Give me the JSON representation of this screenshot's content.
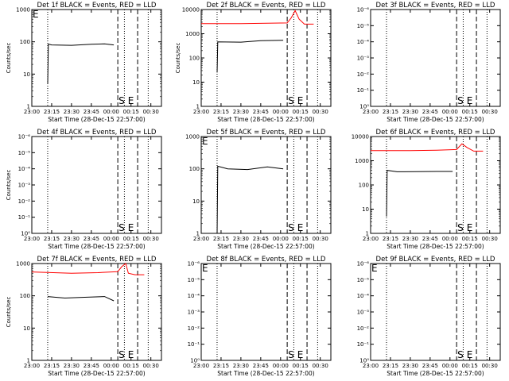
{
  "chart_data": [
    {
      "type": "line",
      "title": "Det 1f BLACK = Events, RED = LLD",
      "xlabel": "Start Time (28-Dec-15 22:57:00)",
      "ylabel": "Counts/sec",
      "yscale": "log",
      "ylim": [
        1,
        1000
      ],
      "yticks": [
        "1",
        "10",
        "100",
        "1000"
      ],
      "xlim": [
        "23:00",
        "00:38"
      ],
      "xticks": [
        "23:00",
        "23:15",
        "23:30",
        "23:45",
        "00:00",
        "00:15",
        "00:30"
      ],
      "markers": [
        {
          "label": "E",
          "x": "23:00"
        },
        {
          "label": "S",
          "x": "00:05"
        },
        {
          "label": "E",
          "x": "00:12"
        }
      ],
      "dotted_lines": [
        "23:12",
        "00:10",
        "00:28"
      ],
      "dashed_lines": [
        "00:05",
        "00:20"
      ],
      "series": [
        {
          "color": "#000000",
          "points": [
            [
              "23:12",
              5
            ],
            [
              "23:12.5",
              85
            ],
            [
              "23:15",
              80
            ],
            [
              "23:30",
              78
            ],
            [
              "23:45",
              84
            ],
            [
              "23:55",
              86
            ],
            [
              "00:02",
              80
            ]
          ]
        }
      ]
    },
    {
      "type": "line",
      "title": "Det 2f BLACK = Events, RED = LLD",
      "xlabel": "Start Time (28-Dec-15 22:57:00)",
      "ylabel": "Counts/sec",
      "yscale": "log",
      "ylim": [
        1,
        10000
      ],
      "yticks": [
        "1",
        "10",
        "100",
        "1000",
        "10000"
      ],
      "xlim": [
        "23:00",
        "00:38"
      ],
      "xticks": [
        "23:00",
        "23:15",
        "23:30",
        "23:45",
        "00:00",
        "00:15",
        "00:30"
      ],
      "markers": [
        {
          "label": "S",
          "x": "00:05"
        },
        {
          "label": "E",
          "x": "00:12"
        }
      ],
      "dotted_lines": [
        "23:12",
        "00:10",
        "00:28"
      ],
      "dashed_lines": [
        "00:05",
        "00:20"
      ],
      "series": [
        {
          "color": "#000000",
          "points": [
            [
              "23:12",
              25
            ],
            [
              "23:12.5",
              460
            ],
            [
              "23:30",
              450
            ],
            [
              "23:45",
              520
            ],
            [
              "00:02",
              540
            ]
          ]
        },
        {
          "color": "#ff0000",
          "points": [
            [
              "23:00",
              2600
            ],
            [
              "23:30",
              2600
            ],
            [
              "23:50",
              2700
            ],
            [
              "00:05",
              2800
            ],
            [
              "00:08",
              4500
            ],
            [
              "00:11",
              9000
            ],
            [
              "00:14",
              4000
            ],
            [
              "00:18",
              2500
            ],
            [
              "00:25",
              2500
            ]
          ]
        }
      ]
    },
    {
      "type": "line",
      "title": "Det 3f BLACK = Events, RED = LLD",
      "xlabel": "Start Time (28-Dec-15 22:57:00)",
      "ylabel": "",
      "yscale": "log",
      "yticks": [
        "10⁰",
        "10⁻¹",
        "10⁻²",
        "10⁻³",
        "10⁻⁴",
        "10⁻⁵",
        "10⁻⁶"
      ],
      "xlim": [
        "23:00",
        "00:38"
      ],
      "xticks": [
        "23:00",
        "23:15",
        "23:30",
        "23:45",
        "00:00",
        "00:15",
        "00:30"
      ],
      "markers": [
        {
          "label": "S",
          "x": "00:05"
        },
        {
          "label": "E",
          "x": "00:12"
        }
      ],
      "dotted_lines": [
        "23:12",
        "00:10",
        "00:28"
      ],
      "dashed_lines": [
        "00:05",
        "00:20"
      ],
      "series": []
    },
    {
      "type": "line",
      "title": "Det 4f BLACK = Events, RED = LLD",
      "xlabel": "Start Time (28-Dec-15 22:57:00)",
      "ylabel": "Counts/sec",
      "yscale": "log",
      "yticks": [
        "10⁰",
        "10⁻¹",
        "10⁻²",
        "10⁻³",
        "10⁻⁴",
        "10⁻⁵",
        "10⁻⁶"
      ],
      "xlim": [
        "23:00",
        "00:38"
      ],
      "xticks": [
        "23:00",
        "23:15",
        "23:30",
        "23:45",
        "00:00",
        "00:15",
        "00:30"
      ],
      "markers": [
        {
          "label": "S",
          "x": "00:05"
        },
        {
          "label": "E",
          "x": "00:12"
        }
      ],
      "dotted_lines": [
        "23:12",
        "00:10",
        "00:28"
      ],
      "dashed_lines": [
        "00:05",
        "00:20"
      ],
      "series": []
    },
    {
      "type": "line",
      "title": "Det 5f BLACK = Events, RED = LLD",
      "xlabel": "Start Time (28-Dec-15 22:57:00)",
      "ylabel": "",
      "yscale": "log",
      "ylim": [
        1,
        1000
      ],
      "yticks": [
        "1",
        "10",
        "100",
        "1000"
      ],
      "xlim": [
        "23:00",
        "00:38"
      ],
      "xticks": [
        "23:00",
        "23:15",
        "23:30",
        "23:45",
        "00:00",
        "00:15",
        "00:30"
      ],
      "markers": [
        {
          "label": "E",
          "x": "23:00"
        },
        {
          "label": "S",
          "x": "00:05"
        },
        {
          "label": "E",
          "x": "00:12"
        }
      ],
      "dotted_lines": [
        "23:12",
        "00:10",
        "00:28"
      ],
      "dashed_lines": [
        "00:05",
        "00:20"
      ],
      "series": [
        {
          "color": "#000000",
          "points": [
            [
              "23:12",
              1
            ],
            [
              "23:12.5",
              120
            ],
            [
              "23:20",
              100
            ],
            [
              "23:35",
              95
            ],
            [
              "23:50",
              115
            ],
            [
              "00:02",
              100
            ]
          ]
        }
      ]
    },
    {
      "type": "line",
      "title": "Det 6f BLACK = Events, RED = LLD",
      "xlabel": "Start Time (28-Dec-15 22:57:00)",
      "ylabel": "",
      "yscale": "log",
      "ylim": [
        1,
        10000
      ],
      "yticks": [
        "1",
        "10",
        "100",
        "1000",
        "10000"
      ],
      "xlim": [
        "23:00",
        "00:38"
      ],
      "xticks": [
        "23:00",
        "23:15",
        "23:30",
        "23:45",
        "00:00",
        "00:15",
        "00:30"
      ],
      "markers": [
        {
          "label": "S",
          "x": "00:05"
        },
        {
          "label": "E",
          "x": "00:12"
        }
      ],
      "dotted_lines": [
        "23:12",
        "00:10",
        "00:28"
      ],
      "dashed_lines": [
        "00:05",
        "00:20"
      ],
      "series": [
        {
          "color": "#000000",
          "points": [
            [
              "23:12",
              5
            ],
            [
              "23:12.5",
              400
            ],
            [
              "23:20",
              350
            ],
            [
              "23:50",
              360
            ],
            [
              "00:02",
              360
            ]
          ]
        },
        {
          "color": "#ff0000",
          "points": [
            [
              "23:00",
              2600
            ],
            [
              "23:30",
              2600
            ],
            [
              "23:50",
              2700
            ],
            [
              "00:05",
              2900
            ],
            [
              "00:09",
              5000
            ],
            [
              "00:13",
              3500
            ],
            [
              "00:18",
              2500
            ],
            [
              "00:25",
              2500
            ]
          ]
        }
      ]
    },
    {
      "type": "line",
      "title": "Det 7f BLACK = Events, RED = LLD",
      "xlabel": "Start Time (28-Dec-15 22:57:00)",
      "ylabel": "Counts/sec",
      "yscale": "log",
      "ylim": [
        1,
        1000
      ],
      "yticks": [
        "1",
        "10",
        "100",
        "1000"
      ],
      "xlim": [
        "23:00",
        "00:38"
      ],
      "xticks": [
        "23:00",
        "23:15",
        "23:30",
        "23:45",
        "00:00",
        "00:15",
        "00:30"
      ],
      "markers": [
        {
          "label": "S",
          "x": "00:05"
        },
        {
          "label": "E",
          "x": "00:12"
        }
      ],
      "dotted_lines": [
        "23:12",
        "00:10",
        "00:28"
      ],
      "dashed_lines": [
        "00:05",
        "00:20"
      ],
      "series": [
        {
          "color": "#000000",
          "points": [
            [
              "23:12",
              95
            ],
            [
              "23:25",
              85
            ],
            [
              "23:40",
              90
            ],
            [
              "23:55",
              95
            ],
            [
              "00:02",
              70
            ]
          ]
        },
        {
          "color": "#ff0000",
          "points": [
            [
              "23:00",
              550
            ],
            [
              "23:30",
              500
            ],
            [
              "23:50",
              520
            ],
            [
              "00:05",
              560
            ],
            [
              "00:08",
              800
            ],
            [
              "00:11",
              1000
            ],
            [
              "00:13",
              500
            ],
            [
              "00:18",
              450
            ],
            [
              "00:25",
              450
            ]
          ]
        }
      ]
    },
    {
      "type": "line",
      "title": "Det 8f BLACK = Events, RED = LLD",
      "xlabel": "Start Time (28-Dec-15 22:57:00)",
      "ylabel": "",
      "yscale": "log",
      "yticks": [
        "10⁰",
        "10⁻¹",
        "10⁻²",
        "10⁻³",
        "10⁻⁴",
        "10⁻⁵",
        "10⁻⁶"
      ],
      "xlim": [
        "23:00",
        "00:38"
      ],
      "xticks": [
        "23:00",
        "23:15",
        "23:30",
        "23:45",
        "00:00",
        "00:15",
        "00:30"
      ],
      "markers": [
        {
          "label": "E",
          "x": "23:00"
        },
        {
          "label": "S",
          "x": "00:05"
        },
        {
          "label": "E",
          "x": "00:12"
        }
      ],
      "dotted_lines": [
        "23:12",
        "00:10",
        "00:28"
      ],
      "dashed_lines": [
        "00:05",
        "00:20"
      ],
      "series": []
    },
    {
      "type": "line",
      "title": "Det 9f BLACK = Events, RED = LLD",
      "xlabel": "Start Time (28-Dec-15 22:57:00)",
      "ylabel": "",
      "yscale": "log",
      "yticks": [
        "10⁰",
        "10⁻¹",
        "10⁻²",
        "10⁻³",
        "10⁻⁴",
        "10⁻⁵",
        "10⁻⁶"
      ],
      "xlim": [
        "23:00",
        "00:38"
      ],
      "xticks": [
        "23:00",
        "23:15",
        "23:30",
        "23:45",
        "00:00",
        "00:15",
        "00:30"
      ],
      "markers": [
        {
          "label": "E",
          "x": "23:00"
        },
        {
          "label": "S",
          "x": "00:05"
        },
        {
          "label": "E",
          "x": "00:12"
        }
      ],
      "dotted_lines": [
        "23:12",
        "00:10",
        "00:28"
      ],
      "dashed_lines": [
        "00:05",
        "00:20"
      ],
      "series": []
    }
  ]
}
